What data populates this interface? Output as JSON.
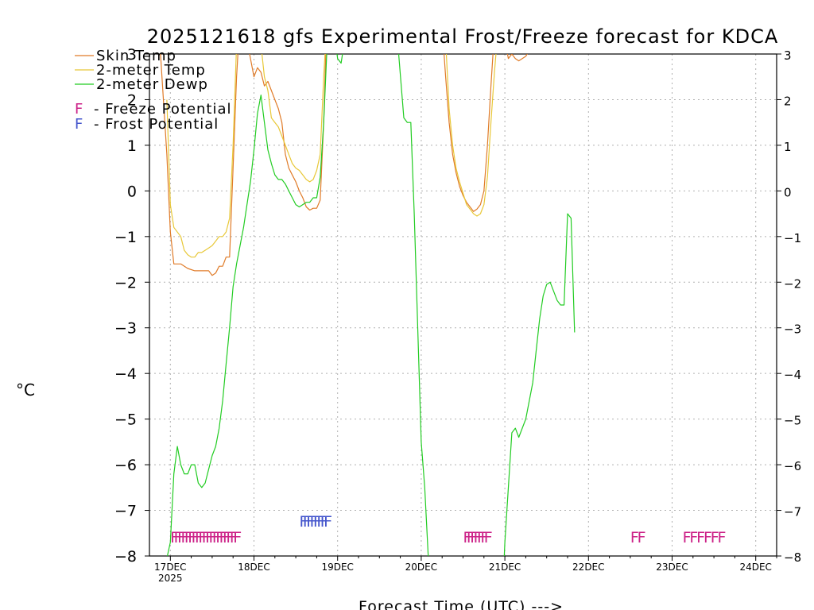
{
  "chart_data": {
    "type": "line",
    "title": "2025121618 gfs Experimental Frost/Freeze forecast for KDCA",
    "xlabel": "Forecast Time (UTC) --->",
    "ylabel": "°C",
    "ylim": [
      -8,
      3
    ],
    "xlim_hours": [
      -6,
      174
    ],
    "yticks": [
      -8,
      -7,
      -6,
      -5,
      -4,
      -3,
      -2,
      -1,
      0,
      1,
      2,
      3
    ],
    "grid": true,
    "x_ticks": [
      {
        "h": 0,
        "label": "17DEC",
        "sublabel": "2025"
      },
      {
        "h": 24,
        "label": "18DEC",
        "sublabel": ""
      },
      {
        "h": 48,
        "label": "19DEC",
        "sublabel": ""
      },
      {
        "h": 72,
        "label": "20DEC",
        "sublabel": ""
      },
      {
        "h": 96,
        "label": "21DEC",
        "sublabel": ""
      },
      {
        "h": 120,
        "label": "22DEC",
        "sublabel": ""
      },
      {
        "h": 144,
        "label": "23DEC",
        "sublabel": ""
      },
      {
        "h": 168,
        "label": "24DEC",
        "sublabel": ""
      }
    ],
    "legend": {
      "placement": "top-left",
      "entries": [
        {
          "name": "Skin Temp",
          "color": "#e07b28"
        },
        {
          "name": "2-meter Temp",
          "color": "#e8c838"
        },
        {
          "name": "2-meter Dewp",
          "color": "#22cc22"
        }
      ],
      "markers": [
        {
          "letter": "F",
          "text": "- Freeze Potential",
          "color": "#cc2288"
        },
        {
          "letter": "F",
          "text": "- Frost Potential",
          "color": "#4455cc"
        }
      ]
    },
    "series": [
      {
        "name": "Skin Temp",
        "color": "#e07b28",
        "points": [
          [
            -6,
            3.4
          ],
          [
            -3,
            3.2
          ],
          [
            -1,
            0.8
          ],
          [
            0,
            -0.9
          ],
          [
            1,
            -1.6
          ],
          [
            3,
            -1.6
          ],
          [
            5,
            -1.7
          ],
          [
            7,
            -1.75
          ],
          [
            9,
            -1.75
          ],
          [
            11,
            -1.75
          ],
          [
            12,
            -1.85
          ],
          [
            13,
            -1.8
          ],
          [
            14,
            -1.65
          ],
          [
            15,
            -1.65
          ],
          [
            16,
            -1.45
          ],
          [
            17,
            -1.45
          ],
          [
            18,
            0.5
          ],
          [
            19,
            2.5
          ],
          [
            20,
            3.8
          ],
          [
            22,
            3.3
          ],
          [
            24,
            2.5
          ],
          [
            25,
            2.7
          ],
          [
            26,
            2.6
          ],
          [
            27,
            2.3
          ],
          [
            28,
            2.4
          ],
          [
            29,
            2.2
          ],
          [
            30,
            2.0
          ],
          [
            31,
            1.8
          ],
          [
            32,
            1.5
          ],
          [
            33,
            0.8
          ],
          [
            34,
            0.5
          ],
          [
            35,
            0.35
          ],
          [
            36,
            0.2
          ],
          [
            37,
            0.0
          ],
          [
            38,
            -0.15
          ],
          [
            39,
            -0.35
          ],
          [
            40,
            -0.42
          ],
          [
            41,
            -0.38
          ],
          [
            42,
            -0.38
          ],
          [
            43,
            -0.2
          ],
          [
            44,
            1.5
          ],
          [
            45,
            4.0
          ],
          [
            78,
            3.6
          ],
          [
            79,
            2.5
          ],
          [
            80,
            1.5
          ],
          [
            81,
            0.8
          ],
          [
            82,
            0.4
          ],
          [
            83,
            0.1
          ],
          [
            84,
            -0.1
          ],
          [
            85,
            -0.25
          ],
          [
            86,
            -0.35
          ],
          [
            87,
            -0.45
          ],
          [
            88,
            -0.4
          ],
          [
            89,
            -0.3
          ],
          [
            90,
            0.0
          ],
          [
            91,
            1.0
          ],
          [
            92,
            2.3
          ],
          [
            93,
            3.5
          ],
          [
            96,
            3.3
          ],
          [
            97,
            2.9
          ],
          [
            98,
            3.0
          ],
          [
            99,
            2.9
          ],
          [
            100,
            2.85
          ],
          [
            101,
            2.9
          ],
          [
            102,
            2.95
          ],
          [
            104,
            3.2
          ]
        ]
      },
      {
        "name": "2-meter Temp",
        "color": "#e8c838",
        "points": [
          [
            -1,
            2.0
          ],
          [
            0,
            -0.3
          ],
          [
            1,
            -0.8
          ],
          [
            3,
            -1.0
          ],
          [
            4,
            -1.3
          ],
          [
            5,
            -1.4
          ],
          [
            6,
            -1.45
          ],
          [
            7,
            -1.45
          ],
          [
            8,
            -1.35
          ],
          [
            9,
            -1.35
          ],
          [
            10,
            -1.3
          ],
          [
            11,
            -1.25
          ],
          [
            12,
            -1.2
          ],
          [
            13,
            -1.1
          ],
          [
            14,
            -1.0
          ],
          [
            15,
            -1.0
          ],
          [
            16,
            -0.9
          ],
          [
            17,
            -0.6
          ],
          [
            18,
            1.0
          ],
          [
            19,
            3.2
          ],
          [
            26,
            3.2
          ],
          [
            27,
            2.5
          ],
          [
            28,
            2.2
          ],
          [
            29,
            1.6
          ],
          [
            30,
            1.5
          ],
          [
            31,
            1.4
          ],
          [
            32,
            1.2
          ],
          [
            33,
            1.0
          ],
          [
            34,
            0.8
          ],
          [
            35,
            0.6
          ],
          [
            36,
            0.5
          ],
          [
            37,
            0.45
          ],
          [
            38,
            0.35
          ],
          [
            39,
            0.25
          ],
          [
            40,
            0.2
          ],
          [
            41,
            0.25
          ],
          [
            42,
            0.45
          ],
          [
            43,
            0.8
          ],
          [
            44,
            2.5
          ],
          [
            45,
            3.8
          ],
          [
            79,
            3.3
          ],
          [
            80,
            1.8
          ],
          [
            81,
            1.0
          ],
          [
            82,
            0.5
          ],
          [
            83,
            0.2
          ],
          [
            84,
            -0.05
          ],
          [
            85,
            -0.3
          ],
          [
            86,
            -0.4
          ],
          [
            87,
            -0.5
          ],
          [
            88,
            -0.55
          ],
          [
            89,
            -0.5
          ],
          [
            90,
            -0.3
          ],
          [
            91,
            0.3
          ],
          [
            92,
            1.5
          ],
          [
            93,
            2.6
          ],
          [
            94,
            3.5
          ]
        ]
      },
      {
        "name": "2-meter Dewp",
        "color": "#22cc22",
        "points": [
          [
            -6,
            -9.3
          ],
          [
            -2,
            -8.4
          ],
          [
            0,
            -7.7
          ],
          [
            1,
            -6.2
          ],
          [
            2,
            -5.6
          ],
          [
            3,
            -6.0
          ],
          [
            4,
            -6.2
          ],
          [
            5,
            -6.2
          ],
          [
            6,
            -6.0
          ],
          [
            7,
            -6.0
          ],
          [
            8,
            -6.4
          ],
          [
            9,
            -6.5
          ],
          [
            10,
            -6.4
          ],
          [
            11,
            -6.1
          ],
          [
            12,
            -5.8
          ],
          [
            13,
            -5.6
          ],
          [
            14,
            -5.2
          ],
          [
            15,
            -4.6
          ],
          [
            16,
            -3.8
          ],
          [
            17,
            -3.0
          ],
          [
            18,
            -2.1
          ],
          [
            19,
            -1.6
          ],
          [
            20,
            -1.2
          ],
          [
            21,
            -0.8
          ],
          [
            22,
            -0.3
          ],
          [
            23,
            0.2
          ],
          [
            24,
            0.9
          ],
          [
            25,
            1.7
          ],
          [
            26,
            2.1
          ],
          [
            27,
            1.5
          ],
          [
            28,
            0.9
          ],
          [
            29,
            0.6
          ],
          [
            30,
            0.35
          ],
          [
            31,
            0.25
          ],
          [
            32,
            0.25
          ],
          [
            33,
            0.15
          ],
          [
            34,
            0.0
          ],
          [
            35,
            -0.15
          ],
          [
            36,
            -0.3
          ],
          [
            37,
            -0.35
          ],
          [
            38,
            -0.3
          ],
          [
            39,
            -0.25
          ],
          [
            40,
            -0.25
          ],
          [
            41,
            -0.15
          ],
          [
            42,
            -0.15
          ],
          [
            43,
            0.3
          ],
          [
            44,
            1.5
          ],
          [
            45,
            3.2
          ],
          [
            47,
            3.5
          ],
          [
            48,
            2.9
          ],
          [
            49,
            2.8
          ],
          [
            50,
            3.3
          ],
          [
            65,
            3.5
          ],
          [
            67,
            1.6
          ],
          [
            68,
            1.5
          ],
          [
            69,
            1.5
          ],
          [
            70,
            -0.5
          ],
          [
            71,
            -3.0
          ],
          [
            72,
            -5.5
          ],
          [
            73,
            -6.5
          ],
          [
            74,
            -8.0
          ],
          [
            75,
            -9.5
          ],
          [
            95,
            -9.5
          ],
          [
            96,
            -7.7
          ],
          [
            97,
            -6.5
          ],
          [
            98,
            -5.3
          ],
          [
            99,
            -5.2
          ],
          [
            100,
            -5.4
          ],
          [
            101,
            -5.2
          ],
          [
            102,
            -5.0
          ],
          [
            103,
            -4.6
          ],
          [
            104,
            -4.2
          ],
          [
            105,
            -3.5
          ],
          [
            106,
            -2.8
          ],
          [
            107,
            -2.3
          ],
          [
            108,
            -2.05
          ],
          [
            109,
            -2.0
          ],
          [
            110,
            -2.2
          ],
          [
            111,
            -2.4
          ],
          [
            112,
            -2.5
          ],
          [
            113,
            -2.5
          ],
          [
            114,
            -0.5
          ],
          [
            115,
            -0.6
          ],
          [
            116,
            -3.1
          ]
        ]
      }
    ],
    "freeze_markers": {
      "color": "#cc2288",
      "y": -7.55,
      "hours": [
        0,
        1,
        2,
        3,
        4,
        5,
        6,
        7,
        8,
        9,
        10,
        11,
        12,
        13,
        14,
        15,
        16,
        17,
        18,
        84,
        85,
        86,
        87,
        88,
        89,
        90,
        132,
        134,
        147,
        149,
        151,
        153,
        155,
        157
      ]
    },
    "frost_markers": {
      "color": "#4455cc",
      "y": -7.2,
      "hours": [
        37,
        38,
        39,
        40,
        41,
        42,
        43,
        44
      ]
    }
  }
}
